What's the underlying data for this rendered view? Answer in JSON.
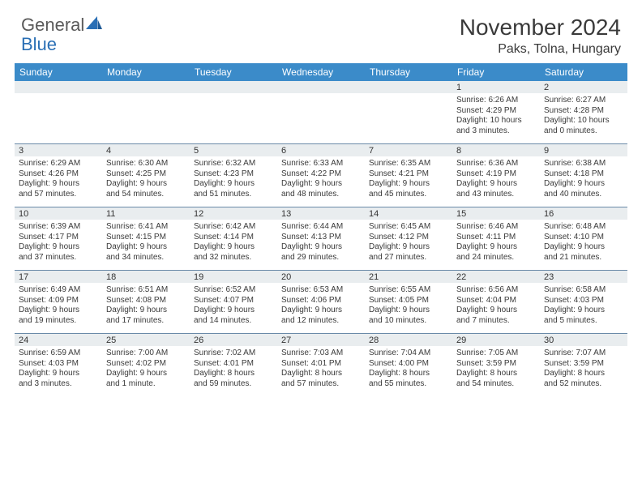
{
  "brand": {
    "part1": "General",
    "part2": "Blue"
  },
  "title": "November 2024",
  "location": "Paks, Tolna, Hungary",
  "colors": {
    "header_bg": "#3b8bc9",
    "header_text": "#ffffff",
    "cell_border": "#6a8aa8",
    "shaded_bg": "#e9edef",
    "text": "#3a3a3a",
    "brand_blue": "#2a6fb5"
  },
  "day_names": [
    "Sunday",
    "Monday",
    "Tuesday",
    "Wednesday",
    "Thursday",
    "Friday",
    "Saturday"
  ],
  "weeks": [
    [
      {
        "n": "",
        "sr": "",
        "ss": "",
        "dl1": "",
        "dl2": ""
      },
      {
        "n": "",
        "sr": "",
        "ss": "",
        "dl1": "",
        "dl2": ""
      },
      {
        "n": "",
        "sr": "",
        "ss": "",
        "dl1": "",
        "dl2": ""
      },
      {
        "n": "",
        "sr": "",
        "ss": "",
        "dl1": "",
        "dl2": ""
      },
      {
        "n": "",
        "sr": "",
        "ss": "",
        "dl1": "",
        "dl2": ""
      },
      {
        "n": "1",
        "sr": "Sunrise: 6:26 AM",
        "ss": "Sunset: 4:29 PM",
        "dl1": "Daylight: 10 hours",
        "dl2": "and 3 minutes."
      },
      {
        "n": "2",
        "sr": "Sunrise: 6:27 AM",
        "ss": "Sunset: 4:28 PM",
        "dl1": "Daylight: 10 hours",
        "dl2": "and 0 minutes."
      }
    ],
    [
      {
        "n": "3",
        "sr": "Sunrise: 6:29 AM",
        "ss": "Sunset: 4:26 PM",
        "dl1": "Daylight: 9 hours",
        "dl2": "and 57 minutes."
      },
      {
        "n": "4",
        "sr": "Sunrise: 6:30 AM",
        "ss": "Sunset: 4:25 PM",
        "dl1": "Daylight: 9 hours",
        "dl2": "and 54 minutes."
      },
      {
        "n": "5",
        "sr": "Sunrise: 6:32 AM",
        "ss": "Sunset: 4:23 PM",
        "dl1": "Daylight: 9 hours",
        "dl2": "and 51 minutes."
      },
      {
        "n": "6",
        "sr": "Sunrise: 6:33 AM",
        "ss": "Sunset: 4:22 PM",
        "dl1": "Daylight: 9 hours",
        "dl2": "and 48 minutes."
      },
      {
        "n": "7",
        "sr": "Sunrise: 6:35 AM",
        "ss": "Sunset: 4:21 PM",
        "dl1": "Daylight: 9 hours",
        "dl2": "and 45 minutes."
      },
      {
        "n": "8",
        "sr": "Sunrise: 6:36 AM",
        "ss": "Sunset: 4:19 PM",
        "dl1": "Daylight: 9 hours",
        "dl2": "and 43 minutes."
      },
      {
        "n": "9",
        "sr": "Sunrise: 6:38 AM",
        "ss": "Sunset: 4:18 PM",
        "dl1": "Daylight: 9 hours",
        "dl2": "and 40 minutes."
      }
    ],
    [
      {
        "n": "10",
        "sr": "Sunrise: 6:39 AM",
        "ss": "Sunset: 4:17 PM",
        "dl1": "Daylight: 9 hours",
        "dl2": "and 37 minutes."
      },
      {
        "n": "11",
        "sr": "Sunrise: 6:41 AM",
        "ss": "Sunset: 4:15 PM",
        "dl1": "Daylight: 9 hours",
        "dl2": "and 34 minutes."
      },
      {
        "n": "12",
        "sr": "Sunrise: 6:42 AM",
        "ss": "Sunset: 4:14 PM",
        "dl1": "Daylight: 9 hours",
        "dl2": "and 32 minutes."
      },
      {
        "n": "13",
        "sr": "Sunrise: 6:44 AM",
        "ss": "Sunset: 4:13 PM",
        "dl1": "Daylight: 9 hours",
        "dl2": "and 29 minutes."
      },
      {
        "n": "14",
        "sr": "Sunrise: 6:45 AM",
        "ss": "Sunset: 4:12 PM",
        "dl1": "Daylight: 9 hours",
        "dl2": "and 27 minutes."
      },
      {
        "n": "15",
        "sr": "Sunrise: 6:46 AM",
        "ss": "Sunset: 4:11 PM",
        "dl1": "Daylight: 9 hours",
        "dl2": "and 24 minutes."
      },
      {
        "n": "16",
        "sr": "Sunrise: 6:48 AM",
        "ss": "Sunset: 4:10 PM",
        "dl1": "Daylight: 9 hours",
        "dl2": "and 21 minutes."
      }
    ],
    [
      {
        "n": "17",
        "sr": "Sunrise: 6:49 AM",
        "ss": "Sunset: 4:09 PM",
        "dl1": "Daylight: 9 hours",
        "dl2": "and 19 minutes."
      },
      {
        "n": "18",
        "sr": "Sunrise: 6:51 AM",
        "ss": "Sunset: 4:08 PM",
        "dl1": "Daylight: 9 hours",
        "dl2": "and 17 minutes."
      },
      {
        "n": "19",
        "sr": "Sunrise: 6:52 AM",
        "ss": "Sunset: 4:07 PM",
        "dl1": "Daylight: 9 hours",
        "dl2": "and 14 minutes."
      },
      {
        "n": "20",
        "sr": "Sunrise: 6:53 AM",
        "ss": "Sunset: 4:06 PM",
        "dl1": "Daylight: 9 hours",
        "dl2": "and 12 minutes."
      },
      {
        "n": "21",
        "sr": "Sunrise: 6:55 AM",
        "ss": "Sunset: 4:05 PM",
        "dl1": "Daylight: 9 hours",
        "dl2": "and 10 minutes."
      },
      {
        "n": "22",
        "sr": "Sunrise: 6:56 AM",
        "ss": "Sunset: 4:04 PM",
        "dl1": "Daylight: 9 hours",
        "dl2": "and 7 minutes."
      },
      {
        "n": "23",
        "sr": "Sunrise: 6:58 AM",
        "ss": "Sunset: 4:03 PM",
        "dl1": "Daylight: 9 hours",
        "dl2": "and 5 minutes."
      }
    ],
    [
      {
        "n": "24",
        "sr": "Sunrise: 6:59 AM",
        "ss": "Sunset: 4:03 PM",
        "dl1": "Daylight: 9 hours",
        "dl2": "and 3 minutes."
      },
      {
        "n": "25",
        "sr": "Sunrise: 7:00 AM",
        "ss": "Sunset: 4:02 PM",
        "dl1": "Daylight: 9 hours",
        "dl2": "and 1 minute."
      },
      {
        "n": "26",
        "sr": "Sunrise: 7:02 AM",
        "ss": "Sunset: 4:01 PM",
        "dl1": "Daylight: 8 hours",
        "dl2": "and 59 minutes."
      },
      {
        "n": "27",
        "sr": "Sunrise: 7:03 AM",
        "ss": "Sunset: 4:01 PM",
        "dl1": "Daylight: 8 hours",
        "dl2": "and 57 minutes."
      },
      {
        "n": "28",
        "sr": "Sunrise: 7:04 AM",
        "ss": "Sunset: 4:00 PM",
        "dl1": "Daylight: 8 hours",
        "dl2": "and 55 minutes."
      },
      {
        "n": "29",
        "sr": "Sunrise: 7:05 AM",
        "ss": "Sunset: 3:59 PM",
        "dl1": "Daylight: 8 hours",
        "dl2": "and 54 minutes."
      },
      {
        "n": "30",
        "sr": "Sunrise: 7:07 AM",
        "ss": "Sunset: 3:59 PM",
        "dl1": "Daylight: 8 hours",
        "dl2": "and 52 minutes."
      }
    ]
  ]
}
